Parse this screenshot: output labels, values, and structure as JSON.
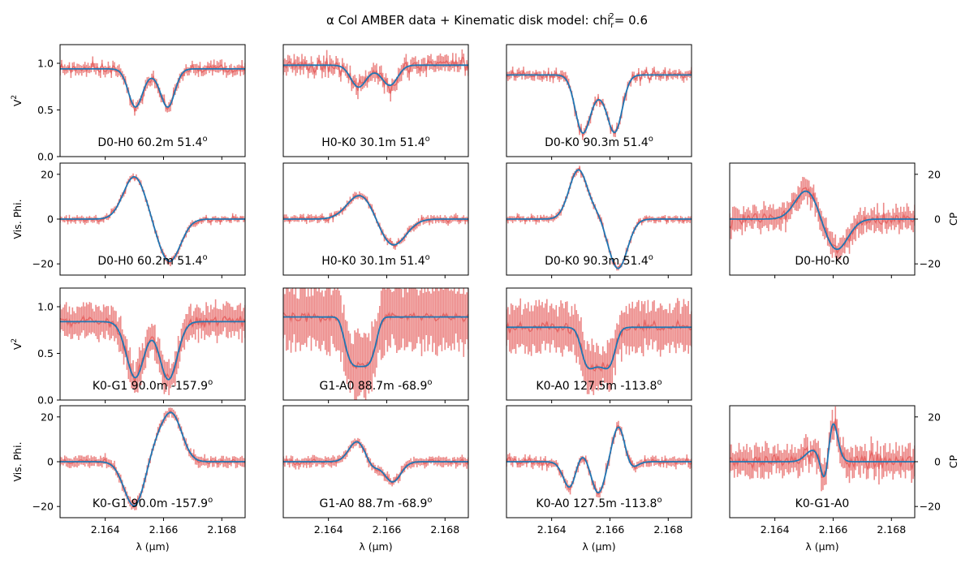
{
  "figure": {
    "title": "α Col AMBER data + Kinematic disk model: chi",
    "title_sub": "r",
    "title_sup": "2",
    "title_tail": "= 0.6"
  },
  "colors": {
    "data": "#e45756",
    "model": "#1f77b4"
  },
  "chart_data": [
    {
      "type": "line",
      "panel": "r0c0",
      "row": 0,
      "col": 0,
      "label": "D0-H0 60.2m 51.4",
      "label_sup": "o",
      "kind": "v2",
      "ylabel": "V",
      "ylabel_sup": "2",
      "ylim": [
        0,
        1.2
      ],
      "yticks": [
        0.0,
        0.5,
        1.0
      ],
      "ytick_labels": [
        "0.0",
        "0.5",
        "1.0"
      ],
      "xlim": [
        2.16245,
        2.1688
      ],
      "xticks": [
        2.164,
        2.166,
        2.168
      ],
      "xtick_labels": [],
      "xlabel": "",
      "model": {
        "base": 0.94,
        "features": [
          [
            2.16503,
            -0.39,
            0.00024
          ],
          [
            2.16615,
            -0.39,
            0.00024
          ],
          [
            2.1656,
            -0.05,
            0.0004
          ]
        ]
      },
      "data_noise": 0.045,
      "err": 0.05
    },
    {
      "type": "line",
      "panel": "r0c1",
      "row": 0,
      "col": 1,
      "label": "H0-K0 30.1m 51.4",
      "label_sup": "o",
      "kind": "v2",
      "ylim": [
        0,
        1.2
      ],
      "xlim": [
        2.16245,
        2.1688
      ],
      "xticks": [
        2.164,
        2.166,
        2.168
      ],
      "xtick_labels": [],
      "model": {
        "base": 0.98,
        "features": [
          [
            2.16502,
            -0.22,
            0.00026
          ],
          [
            2.16612,
            -0.2,
            0.00026
          ],
          [
            2.16558,
            -0.04,
            0.0004
          ]
        ]
      },
      "data_noise": 0.06,
      "err": 0.07
    },
    {
      "type": "line",
      "panel": "r0c2",
      "row": 0,
      "col": 2,
      "label": "D0-K0 90.3m 51.4",
      "label_sup": "o",
      "kind": "v2",
      "ylim": [
        0,
        1.2
      ],
      "xlim": [
        2.16245,
        2.1688
      ],
      "xticks": [
        2.164,
        2.166,
        2.168
      ],
      "xtick_labels": [],
      "model": {
        "base": 0.875,
        "features": [
          [
            2.16505,
            -0.55,
            0.00025
          ],
          [
            2.16618,
            -0.55,
            0.00025
          ],
          [
            2.1656,
            -0.18,
            0.0004
          ]
        ]
      },
      "data_noise": 0.04,
      "err": 0.04
    },
    {
      "type": "line",
      "panel": "r1c0",
      "row": 1,
      "col": 0,
      "label": "D0-H0 60.2m 51.4",
      "label_sup": "o",
      "kind": "phi",
      "ylabel": "Vis. Phi.",
      "ylim": [
        -25,
        25
      ],
      "yticks": [
        -20,
        0,
        20
      ],
      "ytick_labels": [
        "−20",
        "0",
        "20"
      ],
      "xlim": [
        2.16245,
        2.1688
      ],
      "xticks": [
        2.164,
        2.166,
        2.168
      ],
      "xtick_labels": [],
      "model": {
        "base": 0,
        "features": [
          [
            2.165,
            19,
            0.00038
          ],
          [
            2.1662,
            -19,
            0.00038
          ]
        ]
      },
      "data_noise": 0.9,
      "err": 1.2
    },
    {
      "type": "line",
      "panel": "r1c1",
      "row": 1,
      "col": 1,
      "label": "H0-K0 30.1m 51.4",
      "label_sup": "o",
      "kind": "phi",
      "ylim": [
        -25,
        25
      ],
      "xlim": [
        2.16245,
        2.1688
      ],
      "xticks": [
        2.164,
        2.166,
        2.168
      ],
      "xtick_labels": [],
      "model": {
        "base": 0,
        "features": [
          [
            2.1651,
            11,
            0.00045
          ],
          [
            2.1662,
            -12,
            0.00045
          ]
        ]
      },
      "data_noise": 1.0,
      "err": 1.4
    },
    {
      "type": "line",
      "panel": "r1c2",
      "row": 1,
      "col": 2,
      "label": "D0-K0 90.3m 51.4",
      "label_sup": "o",
      "kind": "phi",
      "ylim": [
        -25,
        25
      ],
      "xlim": [
        2.16245,
        2.1688
      ],
      "xticks": [
        2.164,
        2.166,
        2.168
      ],
      "xtick_labels": [],
      "model": {
        "base": 0,
        "features": [
          [
            2.16492,
            22,
            0.00032
          ],
          [
            2.16628,
            -22,
            0.00032
          ],
          [
            2.1656,
            2,
            0.00018
          ]
        ]
      },
      "data_noise": 0.9,
      "err": 1.2
    },
    {
      "type": "line",
      "panel": "r1c3",
      "row": 1,
      "col": 3,
      "label": "D0-H0-K0",
      "kind": "cp",
      "ylabel": "CP",
      "ylim": [
        -25,
        25
      ],
      "yticks": [
        -20,
        0,
        20
      ],
      "ytick_labels": [
        "−20",
        "0",
        "20"
      ],
      "xlim": [
        2.16245,
        2.1688
      ],
      "xticks": [
        2.164,
        2.166,
        2.168
      ],
      "xtick_labels": [],
      "model": {
        "base": 0,
        "features": [
          [
            2.1651,
            13,
            0.0004
          ],
          [
            2.1661,
            -14,
            0.0004
          ]
        ]
      },
      "data_noise": 2.5,
      "err": 4.5
    },
    {
      "type": "line",
      "panel": "r2c0",
      "row": 2,
      "col": 0,
      "label": "K0-G1 90.0m -157.9",
      "label_sup": "o",
      "kind": "v2",
      "ylabel": "V",
      "ylabel_sup": "2",
      "ylim": [
        0,
        1.2
      ],
      "yticks": [
        0.0,
        0.5,
        1.0
      ],
      "ytick_labels": [
        "0.0",
        "0.5",
        "1.0"
      ],
      "xlim": [
        2.16245,
        2.1688
      ],
      "xticks": [
        2.164,
        2.166,
        2.168
      ],
      "xtick_labels": [],
      "model": {
        "base": 0.84,
        "features": [
          [
            2.16503,
            -0.6,
            0.0003
          ],
          [
            2.16617,
            -0.62,
            0.0003
          ]
        ]
      },
      "data_noise": 0.05,
      "err": 0.15
    },
    {
      "type": "line",
      "panel": "r2c1",
      "row": 2,
      "col": 1,
      "label": "G1-A0 88.7m -68.9",
      "label_sup": "o",
      "kind": "v2",
      "ylim": [
        0,
        1.2
      ],
      "xlim": [
        2.16245,
        2.1688
      ],
      "xticks": [
        2.164,
        2.166,
        2.168
      ],
      "xtick_labels": [],
      "model": {
        "base": 0.89,
        "features": [
          [
            2.1651,
            -0.53,
            0.0005,
            "plateau"
          ]
        ]
      },
      "data_noise": 0.04,
      "err": 0.3
    },
    {
      "type": "line",
      "panel": "r2c2",
      "row": 2,
      "col": 2,
      "label": "K0-A0 127.5m -113.8",
      "label_sup": "o",
      "kind": "v2",
      "ylim": [
        0,
        1.2
      ],
      "xlim": [
        2.16245,
        2.1688
      ],
      "xticks": [
        2.164,
        2.166,
        2.168
      ],
      "xtick_labels": [],
      "model": {
        "base": 0.78,
        "features": [
          [
            2.1656,
            -0.42,
            0.0005,
            "plateau"
          ],
          [
            2.1651,
            -0.08,
            0.0002
          ],
          [
            2.1661,
            -0.08,
            0.0002
          ]
        ]
      },
      "data_noise": 0.05,
      "err": 0.22
    },
    {
      "type": "line",
      "panel": "r3c0",
      "row": 3,
      "col": 0,
      "label": "K0-G1 90.0m -157.9",
      "label_sup": "o",
      "kind": "phi",
      "ylabel": "Vis. Phi.",
      "ylim": [
        -25,
        25
      ],
      "yticks": [
        -20,
        0,
        20
      ],
      "ytick_labels": [
        "−20",
        "0",
        "20"
      ],
      "xlim": [
        2.16245,
        2.1688
      ],
      "xticks": [
        2.164,
        2.166,
        2.168
      ],
      "xtick_labels": [
        "2.164",
        "2.166",
        "2.168"
      ],
      "xlabel": "λ (μm)",
      "model": {
        "base": 0,
        "features": [
          [
            2.165,
            -20,
            0.00035
          ],
          [
            2.16628,
            21,
            0.00035
          ],
          [
            2.1657,
            6,
            0.0003
          ]
        ]
      },
      "data_noise": 1.0,
      "err": 2.0
    },
    {
      "type": "line",
      "panel": "r3c1",
      "row": 3,
      "col": 1,
      "label": "G1-A0 88.7m -68.9",
      "label_sup": "o",
      "kind": "phi",
      "ylim": [
        -25,
        25
      ],
      "xlim": [
        2.16245,
        2.1688
      ],
      "xticks": [
        2.164,
        2.166,
        2.168
      ],
      "xtick_labels": [
        "2.164",
        "2.166",
        "2.168"
      ],
      "xlabel": "λ (μm)",
      "model": {
        "base": 0,
        "features": [
          [
            2.16498,
            9,
            0.00028
          ],
          [
            2.1662,
            -9,
            0.00028
          ],
          [
            2.1655,
            -3,
            0.0002
          ]
        ]
      },
      "data_noise": 1.0,
      "err": 1.8
    },
    {
      "type": "line",
      "panel": "r3c2",
      "row": 3,
      "col": 2,
      "label": "K0-A0 127.5m -113.8",
      "label_sup": "o",
      "kind": "phi",
      "ylim": [
        -25,
        25
      ],
      "xlim": [
        2.16245,
        2.1688
      ],
      "xticks": [
        2.164,
        2.166,
        2.168
      ],
      "xtick_labels": [
        "2.164",
        "2.166",
        "2.168"
      ],
      "xlabel": "λ (μm)",
      "model": {
        "base": 0,
        "features": [
          [
            2.1647,
            -16,
            0.00025
          ],
          [
            2.16492,
            10,
            0.00022
          ],
          [
            2.1656,
            -14,
            0.00022
          ],
          [
            2.16632,
            18,
            0.00022
          ],
          [
            2.1666,
            -5,
            0.00025
          ]
        ]
      },
      "data_noise": 1.3,
      "err": 1.8
    },
    {
      "type": "line",
      "panel": "r3c3",
      "row": 3,
      "col": 3,
      "label": "K0-G1-A0",
      "kind": "cp",
      "ylabel": "CP",
      "ylim": [
        -25,
        25
      ],
      "yticks": [
        -20,
        0,
        20
      ],
      "ytick_labels": [
        "−20",
        "0",
        "20"
      ],
      "xlim": [
        2.16245,
        2.1688
      ],
      "xticks": [
        2.164,
        2.166,
        2.168
      ],
      "xtick_labels": [
        "2.164",
        "2.166",
        "2.168"
      ],
      "xlabel": "λ (μm)",
      "model": {
        "base": 0,
        "features": [
          [
            2.1653,
            5,
            0.00025
          ],
          [
            2.1659,
            26,
            0.0002
          ],
          [
            2.16575,
            -25,
            0.00015
          ]
        ]
      },
      "data_noise": 3.0,
      "err": 5.5
    }
  ]
}
